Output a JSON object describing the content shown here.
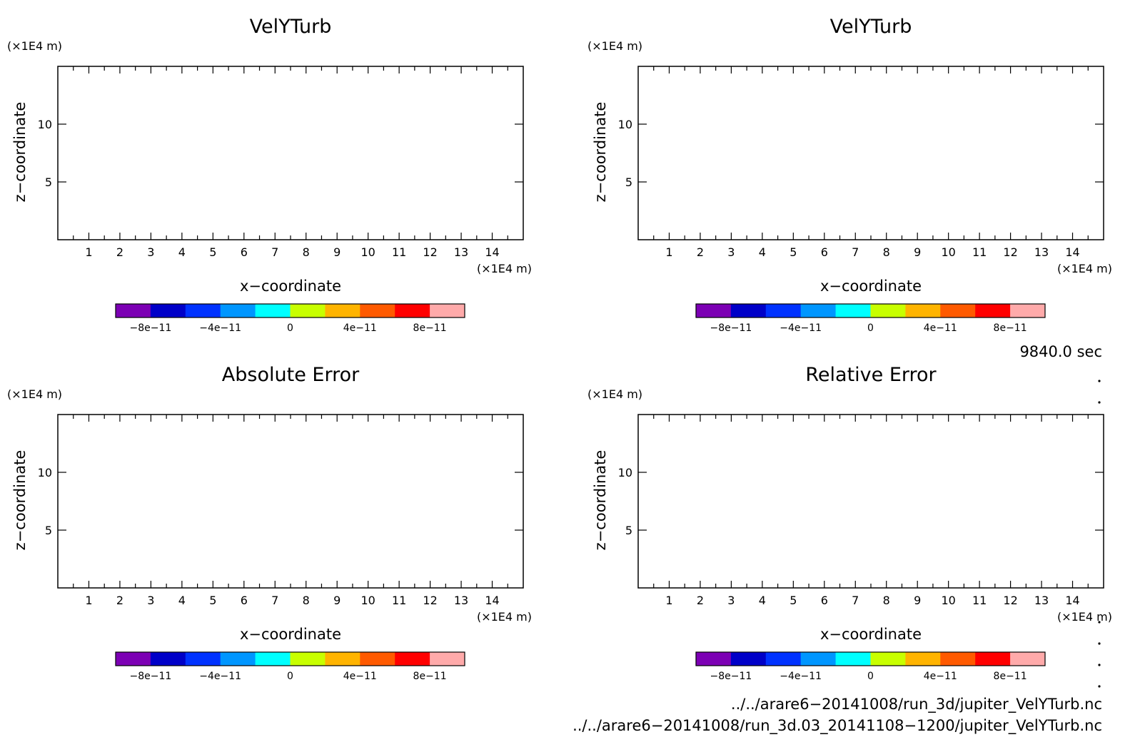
{
  "common": {
    "xlabel": "x−coordinate",
    "ylabel": "z−coordinate",
    "x_unit": "(×1E4 m)",
    "y_unit": "(×1E4 m)",
    "xlim": [
      0,
      15
    ],
    "ylim": [
      0,
      15
    ],
    "x_ticks": [
      "1",
      "2",
      "3",
      "4",
      "5",
      "6",
      "7",
      "8",
      "9",
      "10",
      "11",
      "12",
      "13",
      "14"
    ],
    "y_ticks": [
      "5",
      "10"
    ],
    "colorbar": {
      "colors": [
        "#7c00b4",
        "#0000c8",
        "#0032ff",
        "#0096ff",
        "#00ffff",
        "#c8ff00",
        "#ffb400",
        "#ff5a00",
        "#ff0000",
        "#ffaaaa"
      ],
      "tick_labels": [
        "−8e−11",
        "−4e−11",
        "0",
        "4e−11",
        "8e−11"
      ]
    }
  },
  "chart_data": [
    {
      "type": "heatmap",
      "title": "VelYTurb",
      "xlabel": "x−coordinate",
      "ylabel": "z−coordinate",
      "xlim": [
        0,
        15
      ],
      "ylim": [
        0,
        15
      ],
      "values": []
    },
    {
      "type": "heatmap",
      "title": "VelYTurb",
      "xlabel": "x−coordinate",
      "ylabel": "z−coordinate",
      "xlim": [
        0,
        15
      ],
      "ylim": [
        0,
        15
      ],
      "values": []
    },
    {
      "type": "heatmap",
      "title": "Absolute Error",
      "xlabel": "x−coordinate",
      "ylabel": "z−coordinate",
      "xlim": [
        0,
        15
      ],
      "ylim": [
        0,
        15
      ],
      "values": []
    },
    {
      "type": "heatmap",
      "title": "Relative Error",
      "xlabel": "x−coordinate",
      "ylabel": "z−coordinate",
      "xlim": [
        0,
        15
      ],
      "ylim": [
        0,
        15
      ],
      "values": []
    }
  ],
  "time_label": "9840.0 sec",
  "files": [
    "../../arare6−20141008/run_3d/jupiter_VelYTurb.nc",
    "../../arare6−20141008/run_3d.03_20141108−1200/jupiter_VelYTurb.nc"
  ]
}
